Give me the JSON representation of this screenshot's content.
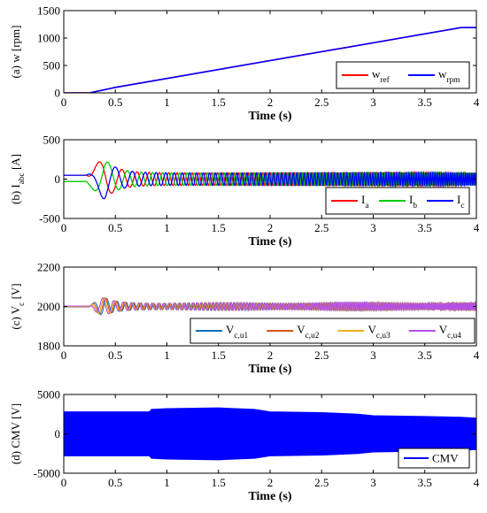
{
  "chart_data": [
    {
      "panel": "a",
      "type": "line",
      "ylabel": "(a) w [rpm]",
      "xlabel": "Time (s)",
      "xlim": [
        0,
        4
      ],
      "ylim": [
        0,
        1500
      ],
      "xticks": [
        "0",
        "0.5",
        "1",
        "1.5",
        "2",
        "2.5",
        "3",
        "3.5",
        "4"
      ],
      "yticks": [
        "0",
        "500",
        "1000",
        "1500"
      ],
      "legend_position": "bottom-right",
      "series": [
        {
          "name": "w",
          "name_sub": "ref",
          "color": "#ff0000",
          "x": [
            0,
            0.25,
            0.5,
            3.85,
            4.0
          ],
          "y": [
            0,
            0,
            100,
            1190,
            1190
          ]
        },
        {
          "name": "w",
          "name_sub": "rpm",
          "color": "#0000ff",
          "x": [
            0,
            0.25,
            0.5,
            3.85,
            4.0
          ],
          "y": [
            0,
            0,
            100,
            1190,
            1190
          ]
        }
      ]
    },
    {
      "panel": "b",
      "type": "line",
      "ylabel_pre": "(b) I",
      "ylabel_sub": "abc",
      "ylabel_post": " [A]",
      "xlabel": "Time (s)",
      "xlim": [
        0,
        4
      ],
      "ylim": [
        -500,
        500
      ],
      "xticks": [
        "0",
        "0.5",
        "1",
        "1.5",
        "2",
        "2.5",
        "3",
        "3.5",
        "4"
      ],
      "yticks": [
        "-500",
        "0",
        "500"
      ],
      "legend_position": "bottom-right",
      "series": [
        {
          "name": "I",
          "name_sub": "a",
          "color": "#ff0000"
        },
        {
          "name": "I",
          "name_sub": "b",
          "color": "#00cc00"
        },
        {
          "name": "I",
          "name_sub": "c",
          "color": "#0000ff"
        }
      ],
      "initial_values": [
        50,
        -30,
        50
      ],
      "peak_amplitude": 250,
      "steady_amplitude": 80
    },
    {
      "panel": "c",
      "type": "line",
      "ylabel_pre": "(c) V",
      "ylabel_sub": "c",
      "ylabel_post": " [V]",
      "xlabel": "Time (s)",
      "xlim": [
        0,
        4
      ],
      "ylim": [
        1800,
        2200
      ],
      "xticks": [
        "0",
        "0.5",
        "1",
        "1.5",
        "2",
        "2.5",
        "3",
        "3.5",
        "4"
      ],
      "yticks": [
        "1800",
        "2000",
        "2200"
      ],
      "legend_position": "bottom",
      "series": [
        {
          "name": "V",
          "name_sub": "c,u1",
          "color": "#0072bd"
        },
        {
          "name": "V",
          "name_sub": "c,u2",
          "color": "#d95319"
        },
        {
          "name": "V",
          "name_sub": "c,u3",
          "color": "#edb120"
        },
        {
          "name": "V",
          "name_sub": "c,u4",
          "color": "#b44fe6"
        }
      ],
      "center_value": 2000,
      "ripple_peak": 45,
      "ripple_steady": 20
    },
    {
      "panel": "d",
      "type": "area",
      "ylabel": "(d) CMV [V]",
      "xlabel": "Time (s)",
      "xlim": [
        0,
        4
      ],
      "ylim": [
        -5000,
        5000
      ],
      "xticks": [
        "0",
        "0.5",
        "1",
        "1.5",
        "2",
        "2.5",
        "3",
        "3.5",
        "4"
      ],
      "yticks": [
        "-5000",
        "0",
        "5000"
      ],
      "legend_position": "bottom-right",
      "series": [
        {
          "name": "CMV",
          "color": "#0000ff",
          "x": [
            0,
            0.83,
            0.85,
            1.0,
            1.5,
            1.85,
            2.0,
            2.5,
            2.85,
            3.0,
            3.5,
            3.85,
            4.0
          ],
          "upper": [
            2800,
            2800,
            3100,
            3200,
            3300,
            3100,
            2800,
            2700,
            2500,
            2300,
            2200,
            2100,
            2000
          ],
          "lower": [
            -2800,
            -2800,
            -3100,
            -3200,
            -3300,
            -3100,
            -2800,
            -2700,
            -2500,
            -2300,
            -2200,
            -2100,
            -2000
          ]
        }
      ]
    }
  ]
}
